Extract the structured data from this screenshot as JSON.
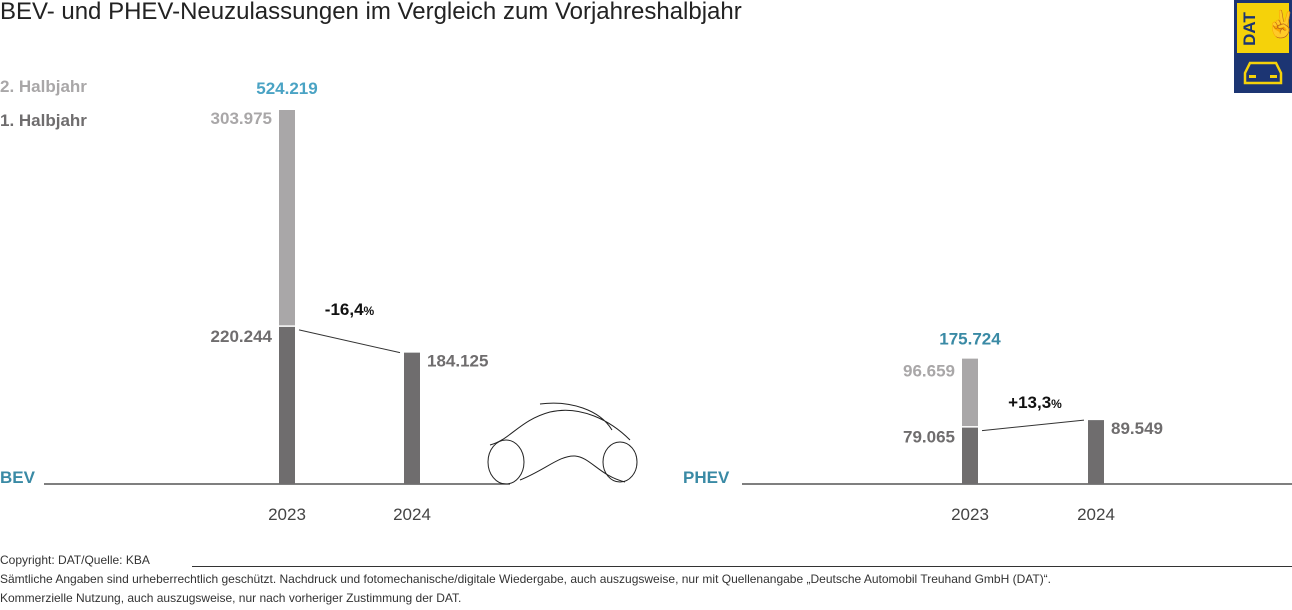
{
  "title": "BEV- und PHEV-Neuzulassungen im Vergleich zum Vorjahreshalbjahr",
  "colors": {
    "h1": "#6f6d6e",
    "h2": "#a9a7a8",
    "total": "#4aa3c4",
    "category": "#3a8aa5",
    "logo_yellow": "#f5d20a",
    "logo_navy": "#1c3573"
  },
  "logo": {
    "text": "DAT"
  },
  "chart_data": {
    "type": "bar",
    "stacked": true,
    "title": "BEV- und PHEV-Neuzulassungen im Vergleich zum Vorjahreshalbjahr",
    "legend": [
      "2. Halbjahr",
      "1. Halbjahr"
    ],
    "legend_position": "top-left",
    "groups": [
      {
        "name": "BEV",
        "categories": [
          "2023",
          "2024"
        ],
        "h1": [
          220244,
          184125
        ],
        "h1_labels": [
          "220.244",
          "184.125"
        ],
        "h2": [
          303975,
          null
        ],
        "h2_label": "303.975",
        "total": 524219,
        "total_label": "524.219",
        "change_label": "-16,4",
        "change_unit": "%"
      },
      {
        "name": "PHEV",
        "categories": [
          "2023",
          "2024"
        ],
        "h1": [
          79065,
          89549
        ],
        "h1_labels": [
          "79.065",
          "89.549"
        ],
        "h2": [
          96659,
          null
        ],
        "h2_label": "96.659",
        "total": 175724,
        "total_label": "175.724",
        "change_label": "+13,3",
        "change_unit": "%"
      }
    ]
  },
  "footer": {
    "copyright": "Copyright: DAT/Quelle: KBA",
    "line1": "Sämtliche Angaben sind urheberrechtlich geschützt. Nachdruck und fotomechanische/digitale Wiedergabe, auch auszugsweise, nur mit Quellenangabe „Deutsche Automobil Treuhand GmbH (DAT)“.",
    "line2": "Kommerzielle Nutzung, auch auszugsweise, nur nach vorheriger Zustimmung der DAT."
  }
}
